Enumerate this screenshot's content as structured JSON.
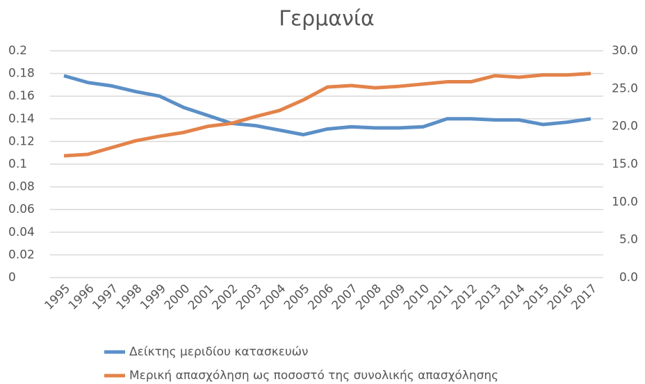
{
  "chart_data": {
    "type": "line",
    "title": "Γερμανία",
    "categories": [
      "1995",
      "1996",
      "1997",
      "1998",
      "1999",
      "2000",
      "2001",
      "2002",
      "2003",
      "2004",
      "2005",
      "2006",
      "2007",
      "2008",
      "2009",
      "2010",
      "2011",
      "2012",
      "2013",
      "2014",
      "2015",
      "2016",
      "2017"
    ],
    "series": [
      {
        "name": "Δείκτης μεριδίου κατασκευών",
        "color": "#5b8fc7",
        "axis": "y",
        "values": [
          0.178,
          0.172,
          0.169,
          0.164,
          0.16,
          0.15,
          0.143,
          0.136,
          0.134,
          0.13,
          0.126,
          0.131,
          0.133,
          0.132,
          0.132,
          0.133,
          0.14,
          0.14,
          0.139,
          0.139,
          0.135,
          0.137,
          0.14
        ]
      },
      {
        "name": "Μερική απασχόληση ως ποσοστό της συνολικής απασχόλησης",
        "color": "#e3834a",
        "axis": "y2",
        "values": [
          16.1,
          16.3,
          17.2,
          18.1,
          18.7,
          19.2,
          20.0,
          20.4,
          21.3,
          22.1,
          23.5,
          25.2,
          25.4,
          25.1,
          25.3,
          25.6,
          25.9,
          25.9,
          26.7,
          26.5,
          26.8,
          26.8,
          27.0
        ]
      }
    ],
    "ylim": [
      0,
      0.2
    ],
    "yticks": [
      0,
      0.02,
      0.04,
      0.06,
      0.08,
      0.1,
      0.12,
      0.14,
      0.16,
      0.18,
      0.2
    ],
    "y2lim": [
      0,
      30
    ],
    "y2ticks": [
      {
        "value": 0,
        "label": "0.0"
      },
      {
        "value": 5,
        "label": "5.0"
      },
      {
        "value": 10,
        "label": "10.0"
      },
      {
        "value": 15,
        "label": "15.0"
      },
      {
        "value": 20,
        "label": "20.0"
      },
      {
        "value": 25,
        "label": "25.0"
      },
      {
        "value": 30,
        "label": "30.0"
      }
    ],
    "grid": true,
    "legend": "bottom"
  }
}
